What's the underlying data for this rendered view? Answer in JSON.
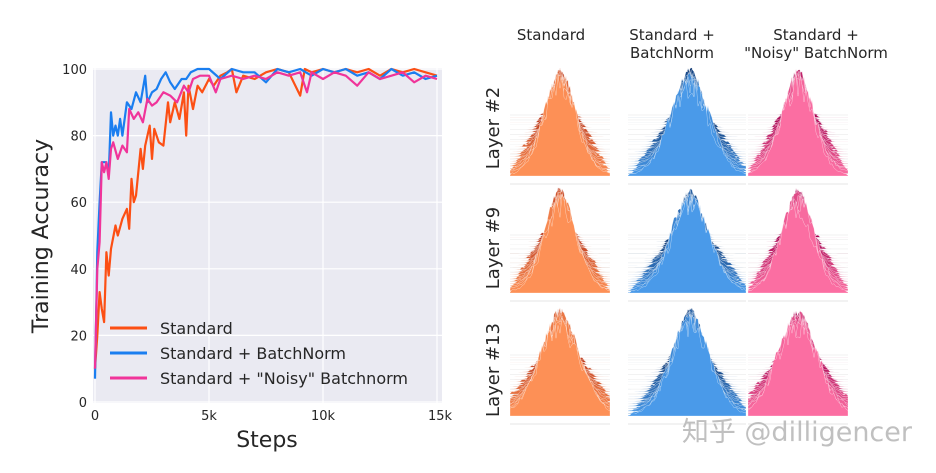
{
  "chart_data": [
    {
      "type": "line",
      "xlabel": "Steps",
      "ylabel": "Training Accuracy",
      "xlim": [
        0,
        15000
      ],
      "ylim": [
        0,
        100
      ],
      "xticks": [
        0,
        5000,
        10000,
        15000
      ],
      "xtick_labels": [
        "0",
        "5k",
        "10k",
        "15k"
      ],
      "yticks": [
        0,
        20,
        40,
        60,
        80,
        100
      ],
      "ytick_labels": [
        "0",
        "20",
        "40",
        "60",
        "80",
        "100"
      ],
      "grid": true,
      "legend_position": "bottom-left",
      "series": [
        {
          "name": "Standard",
          "color": "#fc4f14",
          "x": [
            0,
            100,
            200,
            300,
            400,
            500,
            600,
            700,
            900,
            1000,
            1200,
            1400,
            1500,
            1600,
            1700,
            1800,
            2000,
            2100,
            2200,
            2400,
            2500,
            2600,
            2800,
            3000,
            3200,
            3300,
            3500,
            3700,
            3900,
            4000,
            4100,
            4300,
            4500,
            4700,
            5000,
            5200,
            5500,
            5800,
            6000,
            6200,
            6500,
            7000,
            7500,
            8000,
            8500,
            9000,
            9200,
            9500,
            10000,
            10500,
            11000,
            11500,
            12000,
            12500,
            13000,
            13500,
            14000,
            14500,
            15000
          ],
          "y": [
            10,
            20,
            33,
            28,
            24,
            45,
            38,
            46,
            53,
            50,
            55,
            58,
            52,
            67,
            60,
            62,
            76,
            70,
            77,
            83,
            73,
            82,
            78,
            77,
            90,
            84,
            90,
            85,
            93,
            80,
            95,
            88,
            95,
            93,
            97,
            95,
            98,
            99,
            100,
            93,
            98,
            97,
            99,
            100,
            99,
            92,
            100,
            99,
            100,
            99,
            100,
            99,
            100,
            98,
            100,
            99,
            100,
            99,
            98
          ]
        },
        {
          "name": "Standard + BatchNorm",
          "color": "#1a7ef0",
          "x": [
            0,
            100,
            200,
            300,
            500,
            600,
            700,
            800,
            900,
            1000,
            1100,
            1200,
            1400,
            1600,
            1800,
            2000,
            2200,
            2300,
            2500,
            2700,
            2900,
            3100,
            3300,
            3500,
            3800,
            4000,
            4200,
            4500,
            5000,
            5500,
            6000,
            6500,
            7000,
            7500,
            8000,
            8500,
            9000,
            9500,
            10000,
            10500,
            11000,
            11500,
            12000,
            12500,
            13000,
            13500,
            14000,
            14500,
            15000
          ],
          "y": [
            7,
            45,
            60,
            72,
            72,
            68,
            87,
            80,
            83,
            80,
            85,
            80,
            90,
            88,
            93,
            90,
            98,
            90,
            93,
            94,
            97,
            99,
            96,
            94,
            97,
            97,
            99,
            100,
            100,
            97,
            100,
            99,
            99,
            96,
            100,
            99,
            100,
            98,
            100,
            99,
            100,
            98,
            99,
            97,
            100,
            98,
            99,
            97,
            98
          ]
        },
        {
          "name": "Standard + \"Noisy\" Batchnorm",
          "color": "#f0349a",
          "x": [
            0,
            100,
            200,
            300,
            400,
            500,
            600,
            700,
            800,
            1000,
            1200,
            1400,
            1500,
            1700,
            1900,
            2100,
            2300,
            2500,
            2700,
            3000,
            3300,
            3600,
            3900,
            4100,
            4300,
            4600,
            5000,
            5300,
            5500,
            6000,
            6500,
            7000,
            7500,
            8000,
            8500,
            9000,
            9300,
            9500,
            10000,
            10500,
            11000,
            11500,
            12000,
            12500,
            13000,
            13500,
            14000,
            14500,
            15000
          ],
          "y": [
            10,
            40,
            48,
            72,
            69,
            72,
            67,
            76,
            78,
            73,
            77,
            75,
            88,
            85,
            87,
            84,
            91,
            89,
            90,
            93,
            92,
            90,
            95,
            93,
            97,
            98,
            98,
            93,
            97,
            98,
            97,
            98,
            97,
            99,
            98,
            99,
            93,
            99,
            97,
            99,
            98,
            95,
            99,
            97,
            98,
            99,
            96,
            98,
            97
          ]
        }
      ]
    },
    {
      "type": "ridgeline",
      "columns": [
        "Standard",
        "Standard +\nBatchNorm",
        "Standard +\n\"Noisy\" BatchNorm"
      ],
      "rows": [
        "Layer #2",
        "Layer #9",
        "Layer #13"
      ],
      "colors": {
        "Standard": [
          "#b8361a",
          "#fd9056"
        ],
        "BatchNorm": [
          "#08306b",
          "#4a9ae9"
        ],
        "Noisy": [
          "#a3004f",
          "#fb6ea2"
        ]
      }
    }
  ],
  "column_titles": [
    [
      "Standard",
      ""
    ],
    [
      "Standard +",
      "BatchNorm"
    ],
    [
      "Standard +",
      "\"Noisy\" BatchNorm"
    ]
  ],
  "row_titles": [
    "Layer #2",
    "Layer #9",
    "Layer #13"
  ],
  "watermark": "知乎 @dilligencer"
}
